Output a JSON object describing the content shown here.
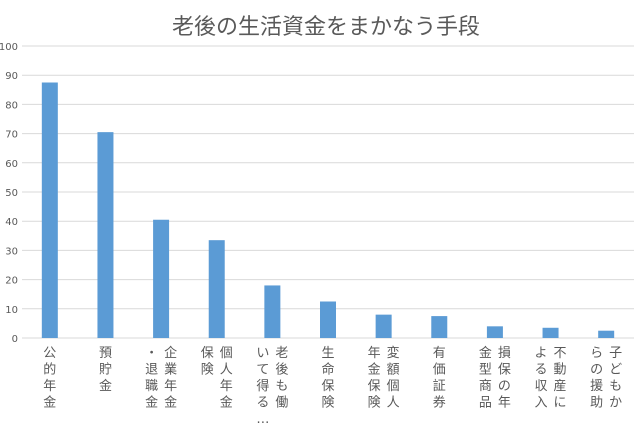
{
  "chart_data": {
    "type": "bar",
    "title": "老後の生活資金をまかなう手段",
    "categories": [
      "公的年金",
      "預貯金",
      "企業年金・退職金",
      "個人年金保険",
      "老後も働いて得る…",
      "生命保険",
      "変額個人年金保険",
      "有価証券",
      "損保の年金型商品",
      "不動産による収入",
      "子どもからの援助"
    ],
    "category_lines": [
      [
        "公的年金"
      ],
      [
        "預貯金"
      ],
      [
        "企業年金",
        "・退職金"
      ],
      [
        "個人年金",
        "保険"
      ],
      [
        "老後も働",
        "いて得る…"
      ],
      [
        "生命保険"
      ],
      [
        "変額個人",
        "年金保険"
      ],
      [
        "有価証券"
      ],
      [
        "損保の年",
        "金型商品"
      ],
      [
        "不動産に",
        "よる収入"
      ],
      [
        "子どもか",
        "らの援助"
      ]
    ],
    "values": [
      87.5,
      70.5,
      40.5,
      33.5,
      18,
      12.5,
      8,
      7.5,
      4,
      3.5,
      2.5
    ],
    "xlabel": "",
    "ylabel": "",
    "ylim": [
      0,
      100
    ],
    "yticks": [
      "0",
      "10",
      "20",
      "30",
      "40",
      "50",
      "60",
      "70",
      "80",
      "90",
      "100"
    ],
    "grid": true,
    "legend": "none",
    "bar_color": "#5b9bd5",
    "grid_color": "#d9d9d9",
    "text_color": "#595959"
  }
}
